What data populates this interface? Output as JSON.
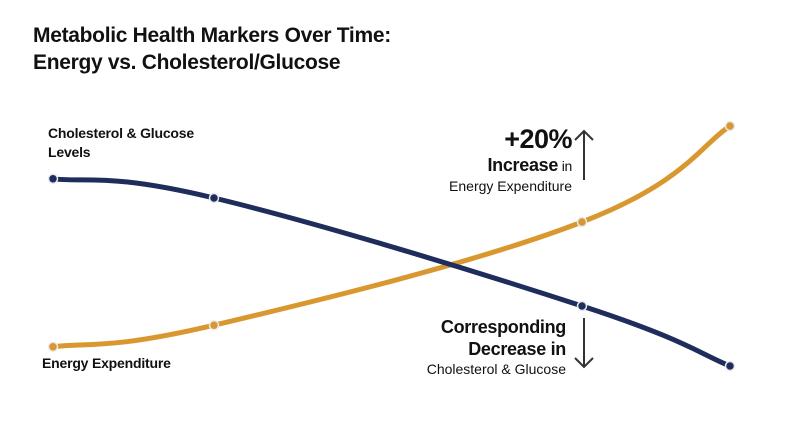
{
  "title": {
    "line1": "Metabolic Health Markers Over Time:",
    "line2": "Energy vs. Cholesterol/Glucose"
  },
  "labels": {
    "cholesterol": "Cholesterol & Glucose Levels",
    "energy": "Energy Expenditure"
  },
  "annotations": {
    "increase_value": "+20%",
    "increase_word": "Increase",
    "increase_in": " in",
    "increase_sub": "Energy Expenditure",
    "decrease_line1": "Corresponding",
    "decrease_line2": "Decrease in",
    "decrease_sub": "Cholesterol & Glucose"
  },
  "colors": {
    "cholesterol": "#1f2d5c",
    "energy": "#d9982f",
    "text": "#111111",
    "arrow": "#333333"
  },
  "chart_data": {
    "type": "line",
    "title": "Metabolic Health Markers Over Time: Energy vs. Cholesterol/Glucose",
    "xlabel": "",
    "ylabel": "",
    "grid": false,
    "x": [
      1,
      2,
      3,
      4
    ],
    "ylim": [
      0,
      100
    ],
    "series": [
      {
        "name": "Cholesterol & Glucose Levels",
        "color": "#1f2d5c",
        "values": [
          78,
          70,
          25,
          0
        ]
      },
      {
        "name": "Energy Expenditure",
        "color": "#d9982f",
        "values": [
          8,
          17,
          60,
          100
        ]
      }
    ]
  }
}
